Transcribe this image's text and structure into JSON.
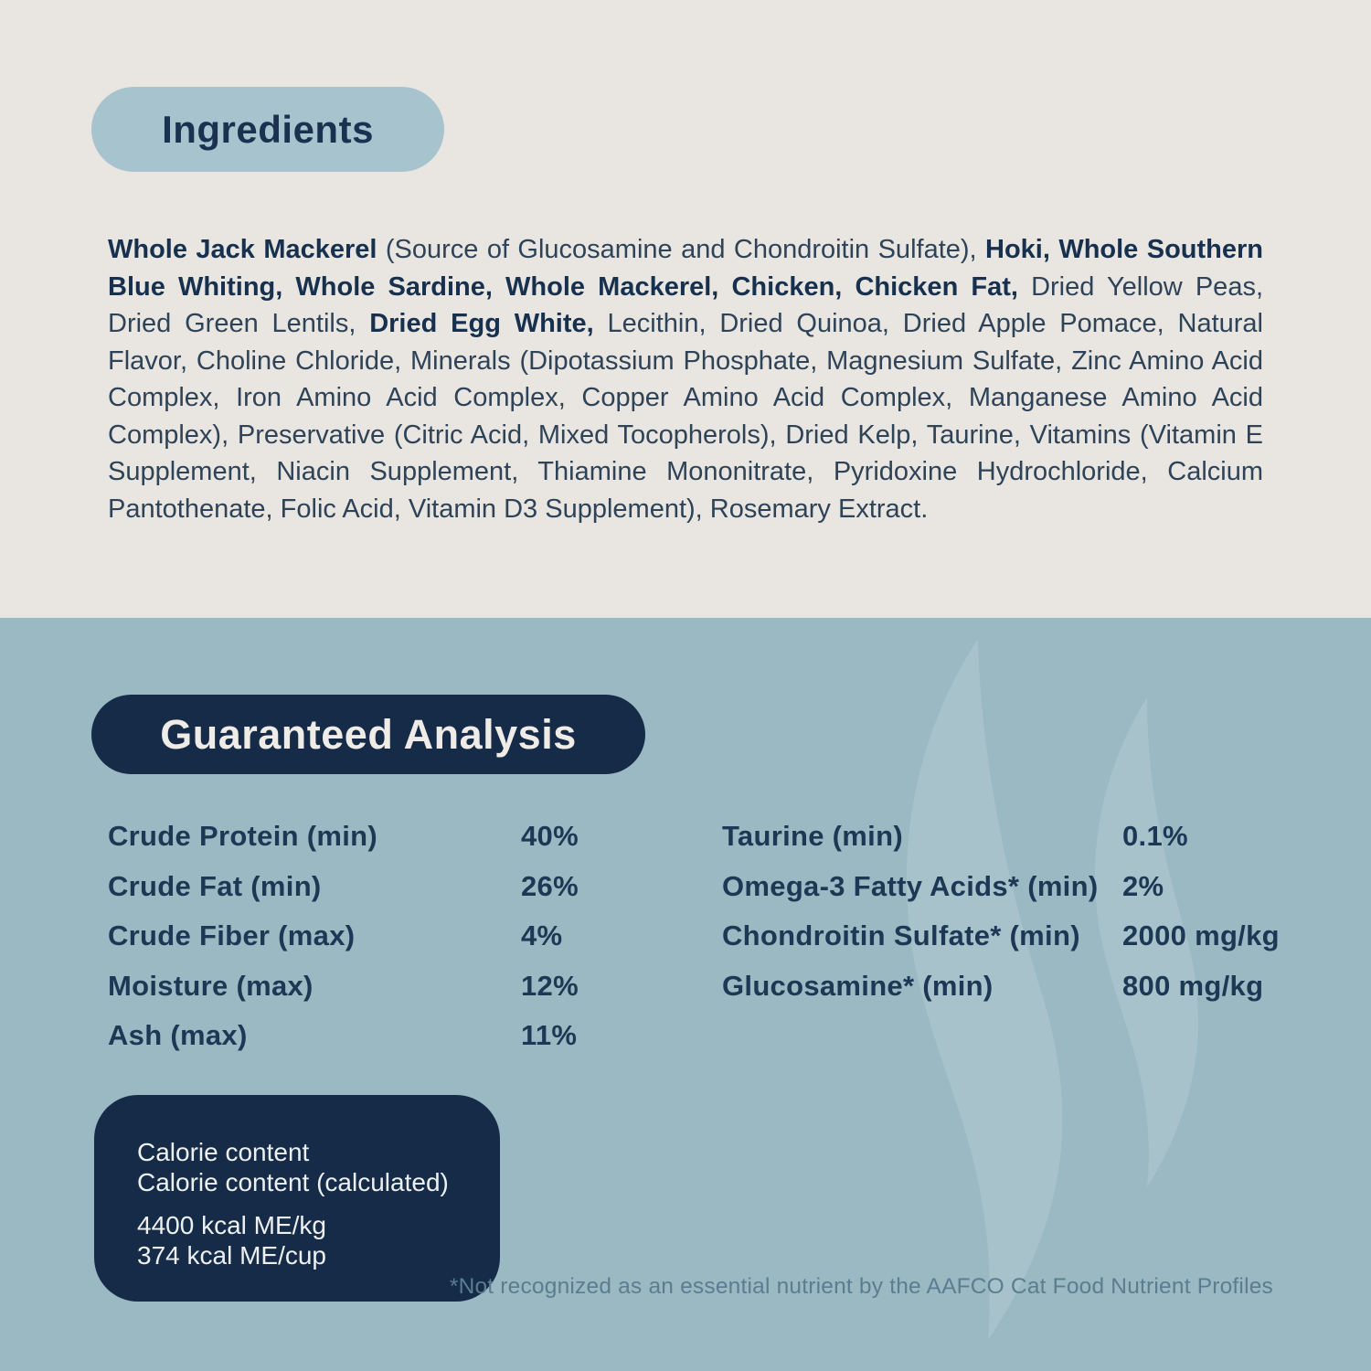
{
  "colors": {
    "top_background": "#e9e6e1",
    "bottom_background": "#9ab9c3",
    "light_pill_background": "#a7c4ce",
    "navy": "#152b47",
    "body_text": "#2e4357",
    "bold_text": "#16304e",
    "pill_dark_text": "#efece7",
    "footnote_text": "#5a7d90"
  },
  "ingredients_section": {
    "title": "Ingredients",
    "paragraph_segments": [
      {
        "bold": true,
        "text": "Whole Jack Mackerel"
      },
      {
        "bold": false,
        "text": " (Source of Glucosamine and Chondroitin Sulfate), "
      },
      {
        "bold": true,
        "text": "Hoki, Whole Southern Blue Whiting, Whole Sardine, Whole Mackerel, Chicken, Chicken Fat,"
      },
      {
        "bold": false,
        "text": " Dried Yellow Peas, Dried Green Lentils, "
      },
      {
        "bold": true,
        "text": "Dried Egg White,"
      },
      {
        "bold": false,
        "text": " Lecithin, Dried Quinoa, Dried Apple Pomace, Natural Flavor, Choline Chloride, Minerals (Dipotassium Phosphate, Magnesium Sulfate, Zinc Amino Acid Complex, Iron Amino Acid Complex, Copper Amino Acid Complex, Manganese Amino Acid Complex), Preservative (Citric Acid, Mixed Tocopherols), Dried Kelp, Taurine, Vitamins (Vitamin E Supplement, Niacin Supplement, Thiamine Mononitrate, Pyridoxine Hydrochloride, Calcium Pantothenate, Folic Acid, Vitamin D3 Supplement), Rosemary Extract."
      }
    ]
  },
  "guaranteed_analysis": {
    "title": "Guaranteed Analysis",
    "left_rows": [
      {
        "label": "Crude Protein (min)",
        "value": "40%"
      },
      {
        "label": "Crude Fat (min)",
        "value": "26%"
      },
      {
        "label": "Crude Fiber (max)",
        "value": "4%"
      },
      {
        "label": "Moisture (max)",
        "value": "12%"
      },
      {
        "label": "Ash (max)",
        "value": "11%"
      }
    ],
    "right_rows": [
      {
        "label": "Taurine (min)",
        "value": "0.1%"
      },
      {
        "label": "Omega-3 Fatty Acids* (min)",
        "value": "2%"
      },
      {
        "label": "Chondroitin Sulfate* (min)",
        "value": "2000 mg/kg"
      },
      {
        "label": "Glucosamine* (min)",
        "value": "800 mg/kg"
      }
    ],
    "footnote": "*Not recognized as an essential nutrient by the AAFCO Cat Food Nutrient Profiles"
  },
  "calorie_box": {
    "title_lines": [
      "Calorie content",
      "Calorie content (calculated)"
    ],
    "value_lines": [
      "4400 kcal ME/kg",
      "374 kcal ME/cup"
    ]
  },
  "watermark": {
    "icon": "steam-swirl-icon"
  }
}
